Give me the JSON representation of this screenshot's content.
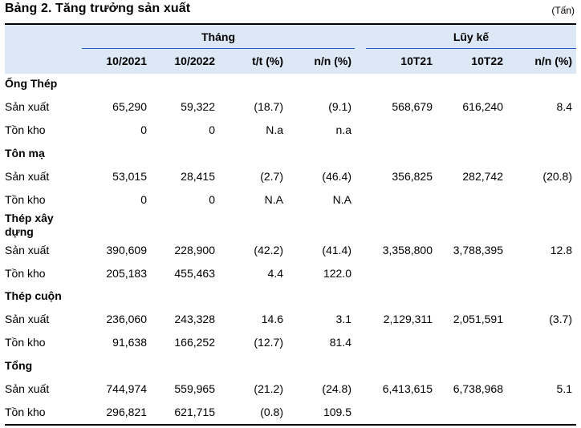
{
  "title": "Bảng 2. Tăng trưởng sản xuất",
  "unit": "(Tấn)",
  "groups": {
    "month": "Tháng",
    "cumulative": "Lũy kế"
  },
  "columns": [
    "10/2021",
    "10/2022",
    "t/t (%)",
    "n/n (%)",
    "10T21",
    "10T22",
    "n/n (%)"
  ],
  "sections": [
    {
      "name": "Ống Thép",
      "rows": [
        {
          "label": "Sản xuất",
          "cells": [
            "65,290",
            "59,322",
            "(18.7)",
            "(9.1)",
            "568,679",
            "616,240",
            "8.4"
          ]
        },
        {
          "label": "Tồn kho",
          "cells": [
            "0",
            "0",
            "N.a",
            "n.a",
            "",
            "",
            ""
          ]
        }
      ]
    },
    {
      "name": "Tôn mạ",
      "rows": [
        {
          "label": "Sản xuất",
          "cells": [
            "53,015",
            "28,415",
            "(2.7)",
            "(46.4)",
            "356,825",
            "282,742",
            "(20.8)"
          ]
        },
        {
          "label": "Tồn kho",
          "cells": [
            "0",
            "0",
            "N.A",
            "N.A",
            "",
            "",
            ""
          ]
        }
      ]
    },
    {
      "name": "Thép xây dựng",
      "rows": [
        {
          "label": "Sản xuất",
          "cells": [
            "390,609",
            "228,900",
            "(42.2)",
            "(41.4)",
            "3,358,800",
            "3,788,395",
            "12.8"
          ]
        },
        {
          "label": "Tồn kho",
          "cells": [
            "205,183",
            "455,463",
            "4.4",
            "122.0",
            "",
            "",
            ""
          ]
        }
      ]
    },
    {
      "name": "Thép cuộn",
      "rows": [
        {
          "label": "Sản xuất",
          "cells": [
            "236,060",
            "243,328",
            "14.6",
            "3.1",
            "2,129,311",
            "2,051,591",
            "(3.7)"
          ]
        },
        {
          "label": "Tồn kho",
          "cells": [
            "91,638",
            "166,252",
            "(12.7)",
            "81.4",
            "",
            "",
            ""
          ]
        }
      ]
    },
    {
      "name": "Tổng",
      "rows": [
        {
          "label": "Sản xuất",
          "cells": [
            "744,974",
            "559,965",
            "(21.2)",
            "(24.8)",
            "6,413,615",
            "6,738,968",
            "5.1"
          ]
        },
        {
          "label": "Tồn kho",
          "cells": [
            "296,821",
            "621,715",
            "(0.8)",
            "109.5",
            "",
            "",
            ""
          ]
        }
      ]
    }
  ]
}
